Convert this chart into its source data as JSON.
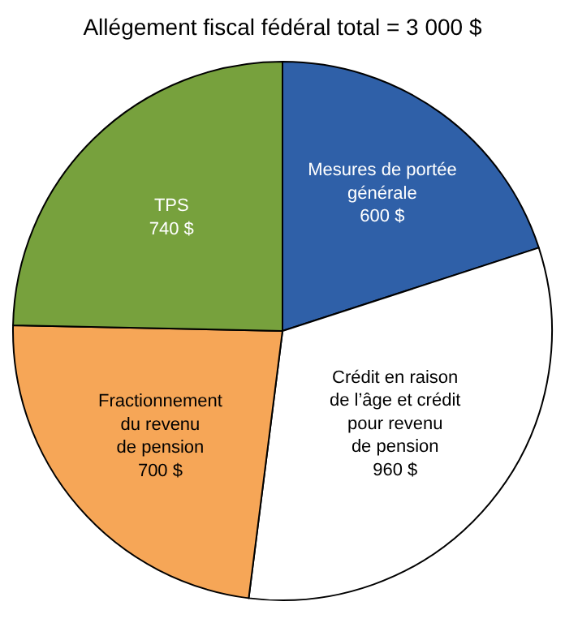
{
  "chart_data": {
    "type": "pie",
    "title": "Allégement fiscal fédéral total = 3 000 $",
    "categories": [
      "Mesures de portée\ngénérale",
      "Crédit en raison\nde l’âge et crédit\npour revenu\nde pension",
      "Fractionnement\ndu revenu\nde pension",
      "TPS"
    ],
    "values": [
      600,
      960,
      700,
      740
    ],
    "value_labels": [
      "600 $",
      "960 $",
      "700 $",
      "740 $"
    ],
    "colors": [
      "#2f60a8",
      "#ffffff",
      "#f6a657",
      "#77a13d"
    ],
    "legend": false
  }
}
